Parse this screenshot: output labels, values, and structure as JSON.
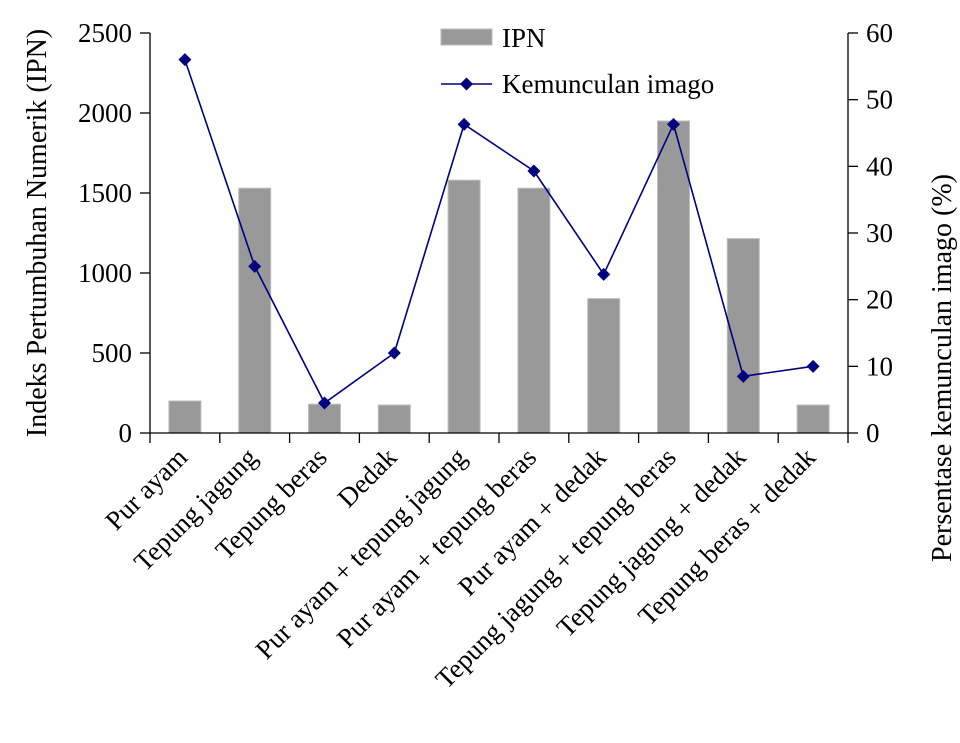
{
  "chart_data": {
    "type": "bar",
    "categories": [
      "Pur ayam",
      "Tepung jagung",
      "Tepung beras",
      "Dedak",
      "Pur ayam + tepung jagung",
      "Pur ayam + tepung beras",
      "Pur ayam + dedak",
      "Tepung jagung + tepung beras",
      "Tepung jagung +  dedak",
      "Tepung beras + dedak"
    ],
    "series": [
      {
        "name": "IPN",
        "type": "bar",
        "axis": "left",
        "color": "#999999",
        "values": [
          200,
          1530,
          180,
          175,
          1580,
          1530,
          840,
          1950,
          1215,
          175
        ]
      },
      {
        "name": "Kemunculan imago",
        "type": "line",
        "axis": "right",
        "color": "#000080",
        "marker": "diamond",
        "values": [
          56,
          25,
          4.5,
          12,
          46.3,
          39.3,
          23.8,
          46.3,
          8.5,
          10
        ]
      }
    ],
    "ylabel": "Indeks Pertumbuhan Numerik (IPN)",
    "y2label": "Persentase kemunculan imago (%)",
    "ylim": [
      0,
      2500
    ],
    "y2lim": [
      0,
      60
    ],
    "yticks": [
      0,
      500,
      1000,
      1500,
      2000,
      2500
    ],
    "y2ticks": [
      0,
      10,
      20,
      30,
      40,
      50,
      60
    ],
    "legend_position": "top",
    "grid": false
  }
}
